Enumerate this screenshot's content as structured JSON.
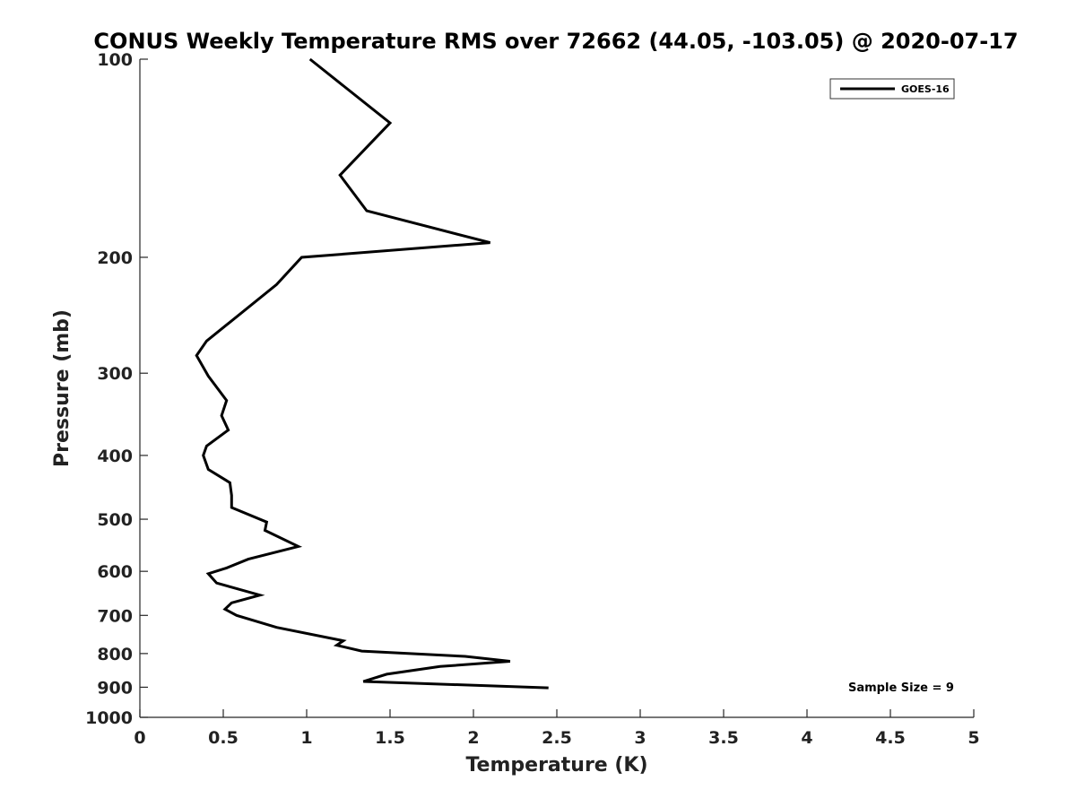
{
  "chart_data": {
    "type": "line",
    "title": "CONUS Weekly Temperature RMS over 72662 (44.05, -103.05) @ 2020-07-17",
    "xlabel": "Temperature (K)",
    "ylabel": "Pressure (mb)",
    "xlim": [
      0,
      5
    ],
    "ylim": [
      100,
      1000
    ],
    "y_scale": "log",
    "y_reversed": true,
    "grid": false,
    "legend_position": "top-right",
    "x_ticks": [
      "0",
      "0.5",
      "1",
      "1.5",
      "2",
      "2.5",
      "3",
      "3.5",
      "4",
      "4.5",
      "5"
    ],
    "y_ticks": [
      "100",
      "200",
      "300",
      "400",
      "500",
      "600",
      "700",
      "800",
      "900",
      "1000"
    ],
    "annotation": "Sample Size = 9",
    "series": [
      {
        "name": "GOES-16",
        "color": "#000000",
        "points": [
          [
            1.02,
            100
          ],
          [
            1.5,
            125
          ],
          [
            1.2,
            150
          ],
          [
            1.36,
            170
          ],
          [
            2.1,
            190
          ],
          [
            0.97,
            200
          ],
          [
            0.82,
            220
          ],
          [
            0.4,
            268
          ],
          [
            0.34,
            282
          ],
          [
            0.41,
            303
          ],
          [
            0.52,
            330
          ],
          [
            0.49,
            348
          ],
          [
            0.53,
            366
          ],
          [
            0.4,
            387
          ],
          [
            0.38,
            400
          ],
          [
            0.41,
            420
          ],
          [
            0.54,
            440
          ],
          [
            0.55,
            460
          ],
          [
            0.55,
            480
          ],
          [
            0.76,
            505
          ],
          [
            0.75,
            520
          ],
          [
            0.95,
            550
          ],
          [
            0.65,
            575
          ],
          [
            0.52,
            593
          ],
          [
            0.41,
            605
          ],
          [
            0.46,
            625
          ],
          [
            0.72,
            652
          ],
          [
            0.55,
            670
          ],
          [
            0.51,
            685
          ],
          [
            0.58,
            700
          ],
          [
            0.82,
            730
          ],
          [
            1.22,
            765
          ],
          [
            1.18,
            777
          ],
          [
            1.33,
            793
          ],
          [
            1.95,
            808
          ],
          [
            2.22,
            822
          ],
          [
            1.8,
            837
          ],
          [
            1.48,
            860
          ],
          [
            1.34,
            882
          ],
          [
            2.45,
            902
          ]
        ]
      }
    ]
  }
}
